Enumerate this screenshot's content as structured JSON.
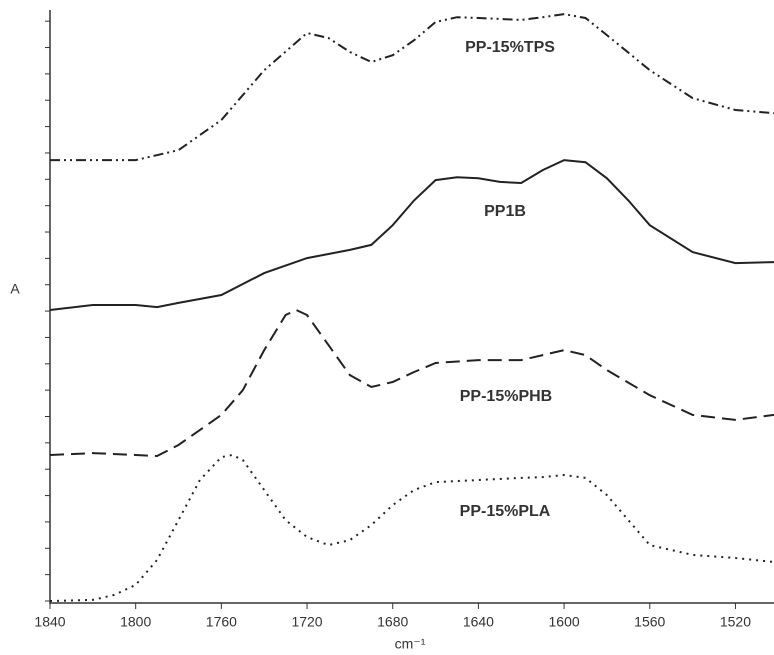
{
  "chart_data": {
    "type": "line",
    "x_label": "cm⁻¹",
    "y_label": "A",
    "xlim": [
      1840,
      1502
    ],
    "xticks": [
      1840,
      1800,
      1760,
      1720,
      1680,
      1640,
      1600,
      1560,
      1520
    ],
    "ylim": [
      0,
      22.5
    ],
    "yticks": [
      0,
      1,
      2,
      3,
      4,
      5,
      6,
      7,
      8,
      9,
      10,
      11,
      12,
      13,
      14,
      15,
      16,
      17,
      18,
      19,
      20,
      21,
      22
    ],
    "reverse_x": true,
    "color": "#222222",
    "series": [
      {
        "name": "PP-15%TPS",
        "dash": "dash-dot-dot",
        "x": [
          1840,
          1800,
          1780,
          1760,
          1740,
          1720,
          1710,
          1700,
          1690,
          1680,
          1670,
          1660,
          1650,
          1640,
          1620,
          1610,
          1600,
          1590,
          1580,
          1560,
          1540,
          1520,
          1502
        ],
        "values": [
          16.73,
          16.73,
          17.11,
          18.25,
          20.14,
          21.55,
          21.36,
          20.83,
          20.45,
          20.71,
          21.28,
          21.97,
          22.15,
          22.12,
          22.05,
          22.15,
          22.27,
          22.12,
          21.47,
          20.14,
          19.08,
          18.63,
          18.51
        ]
      },
      {
        "name": "PP1B",
        "dash": "solid",
        "x": [
          1840,
          1820,
          1800,
          1790,
          1780,
          1760,
          1740,
          1720,
          1700,
          1690,
          1680,
          1670,
          1660,
          1650,
          1640,
          1630,
          1620,
          1610,
          1600,
          1590,
          1580,
          1570,
          1560,
          1540,
          1520,
          1502
        ],
        "values": [
          11.04,
          11.23,
          11.23,
          11.15,
          11.31,
          11.61,
          12.44,
          13.01,
          13.32,
          13.51,
          14.26,
          15.2,
          15.97,
          16.08,
          16.04,
          15.9,
          15.86,
          16.35,
          16.73,
          16.65,
          16.04,
          15.2,
          14.26,
          13.24,
          12.82,
          12.86
        ]
      },
      {
        "name": "PP-15%PHB",
        "dash": "dashed",
        "x": [
          1840,
          1820,
          1800,
          1790,
          1780,
          1760,
          1750,
          1740,
          1730,
          1725,
          1720,
          1710,
          1700,
          1690,
          1680,
          1670,
          1660,
          1640,
          1620,
          1610,
          1600,
          1590,
          1580,
          1560,
          1540,
          1520,
          1502
        ],
        "values": [
          5.54,
          5.61,
          5.54,
          5.5,
          5.92,
          7.06,
          8.0,
          9.52,
          10.85,
          11.04,
          10.85,
          9.71,
          8.57,
          8.12,
          8.31,
          8.69,
          9.03,
          9.14,
          9.14,
          9.33,
          9.52,
          9.33,
          8.76,
          7.81,
          7.06,
          6.87,
          7.06
        ]
      },
      {
        "name": "PP-15%PLA",
        "dash": "dotted",
        "x": [
          1840,
          1820,
          1810,
          1800,
          1790,
          1780,
          1770,
          1760,
          1755,
          1750,
          1740,
          1730,
          1720,
          1710,
          1700,
          1690,
          1680,
          1670,
          1660,
          1640,
          1620,
          1610,
          1600,
          1590,
          1580,
          1570,
          1560,
          1540,
          1520,
          1502
        ],
        "values": [
          0,
          0.04,
          0.23,
          0.61,
          1.56,
          3.07,
          4.59,
          5.46,
          5.54,
          5.35,
          4.21,
          3.07,
          2.43,
          2.12,
          2.31,
          2.88,
          3.64,
          4.21,
          4.51,
          4.59,
          4.67,
          4.7,
          4.78,
          4.67,
          4.02,
          3.07,
          2.12,
          1.75,
          1.63,
          1.48
        ]
      }
    ]
  }
}
